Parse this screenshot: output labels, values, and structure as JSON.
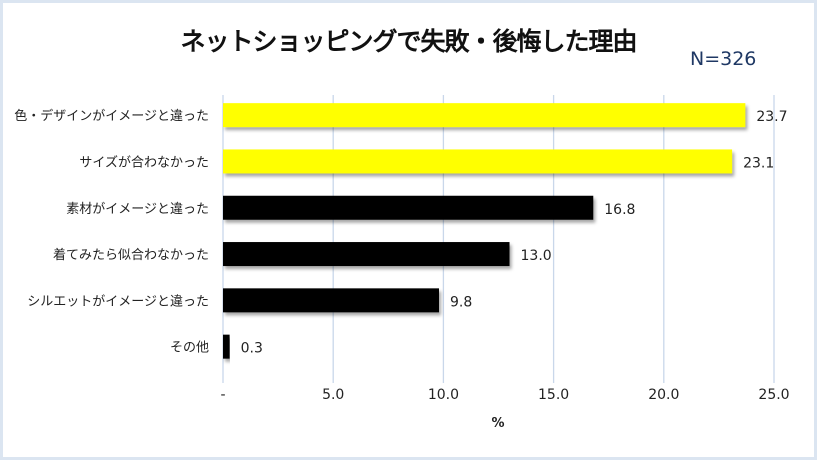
{
  "chart_data": {
    "type": "bar",
    "orientation": "horizontal",
    "title": "ネットショッピングで失敗・後悔した理由",
    "subtitle": "N=326",
    "categories": [
      "色・デザインがイメージと違った",
      "サイズが合わなかった",
      "素材がイメージと違った",
      "着てみたら似合わなかった",
      "シルエットがイメージと違った",
      "その他"
    ],
    "values": [
      23.7,
      23.1,
      16.8,
      13.0,
      9.8,
      0.3
    ],
    "value_labels": [
      "23.7",
      "23.1",
      "16.8",
      "13.0",
      "9.8",
      "0.3"
    ],
    "bar_colors": [
      "#ffff00",
      "#ffff00",
      "#000000",
      "#000000",
      "#000000",
      "#000000"
    ],
    "xlabel": "%",
    "xlim": [
      0,
      25
    ],
    "xticks": [
      0,
      5,
      10,
      15,
      20,
      25
    ],
    "xtick_labels": [
      "-",
      "5.0",
      "10.0",
      "15.0",
      "20.0",
      "25.0"
    ],
    "grid": true,
    "gridline_color": "#c9d7ea"
  }
}
